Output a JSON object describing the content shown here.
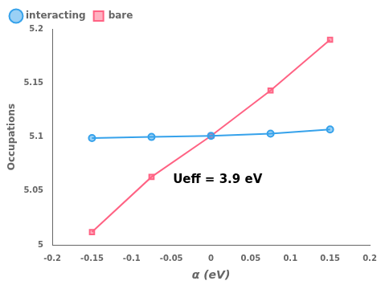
{
  "chart_data": {
    "type": "line",
    "x_label": "α (eV)",
    "y_label": "Occupations",
    "x": [
      -0.15,
      -0.075,
      0.0,
      0.075,
      0.15
    ],
    "series": [
      {
        "name": "interacting",
        "values": [
          5.099,
          5.1,
          5.101,
          5.103,
          5.107
        ],
        "marker": "circle"
      },
      {
        "name": "bare",
        "values": [
          5.012,
          5.063,
          5.101,
          5.143,
          5.19
        ],
        "marker": "square"
      }
    ],
    "xlim": [
      -0.2,
      0.2
    ],
    "xticks": [
      -0.2,
      -0.15,
      -0.1,
      -0.05,
      0,
      0.05,
      0.1,
      0.15,
      0.2
    ],
    "ylim": [
      5.0,
      5.2
    ],
    "yticks": [
      5,
      5.05,
      5.1,
      5.15,
      5.2
    ],
    "annotations": [
      "Ueff = 3.9 eV"
    ],
    "legend": "upper left",
    "grid": false
  }
}
